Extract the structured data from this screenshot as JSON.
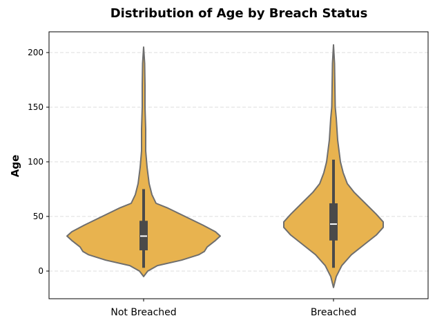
{
  "chart_data": {
    "type": "violin",
    "title": "Distribution of Age by Breach Status",
    "xlabel": "",
    "ylabel": "Age",
    "categories": [
      "Not Breached",
      "Breached"
    ],
    "yticks": [
      0,
      50,
      100,
      150,
      200
    ],
    "ylim": [
      -25,
      220
    ],
    "grid": {
      "axis": "y",
      "style": "dashed",
      "color": "#d3d3d3"
    },
    "fill_color": "#e8b34f",
    "edge_color": "#6e6e6e",
    "box_color": "#4a4a4a",
    "series": [
      {
        "name": "Not Breached",
        "min_whisker": 3,
        "q1": 19,
        "median": 32,
        "q3": 46,
        "max_whisker": 75,
        "kde_range": [
          -5,
          205
        ],
        "peak": 32,
        "profile": [
          [
            -5,
            0
          ],
          [
            0,
            6
          ],
          [
            5,
            20
          ],
          [
            10,
            55
          ],
          [
            15,
            80
          ],
          [
            18,
            88
          ],
          [
            22,
            92
          ],
          [
            28,
            104
          ],
          [
            32,
            111
          ],
          [
            36,
            104
          ],
          [
            42,
            86
          ],
          [
            50,
            60
          ],
          [
            58,
            34
          ],
          [
            62,
            18
          ],
          [
            70,
            12
          ],
          [
            80,
            8
          ],
          [
            95,
            5
          ],
          [
            110,
            3
          ],
          [
            130,
            3
          ],
          [
            150,
            2
          ],
          [
            170,
            2
          ],
          [
            190,
            1.5
          ],
          [
            205,
            0
          ]
        ]
      },
      {
        "name": "Breached",
        "min_whisker": 3,
        "q1": 28,
        "median": 43,
        "q3": 62,
        "max_whisker": 102,
        "kde_range": [
          -15,
          207
        ],
        "peak": 42,
        "profile": [
          [
            -15,
            0
          ],
          [
            -5,
            4
          ],
          [
            5,
            12
          ],
          [
            15,
            26
          ],
          [
            25,
            46
          ],
          [
            33,
            62
          ],
          [
            40,
            72
          ],
          [
            45,
            72
          ],
          [
            52,
            62
          ],
          [
            62,
            46
          ],
          [
            72,
            30
          ],
          [
            80,
            20
          ],
          [
            90,
            14
          ],
          [
            100,
            10
          ],
          [
            120,
            6
          ],
          [
            140,
            4
          ],
          [
            150,
            2.5
          ],
          [
            170,
            2
          ],
          [
            190,
            1.5
          ],
          [
            207,
            0
          ]
        ]
      }
    ]
  }
}
